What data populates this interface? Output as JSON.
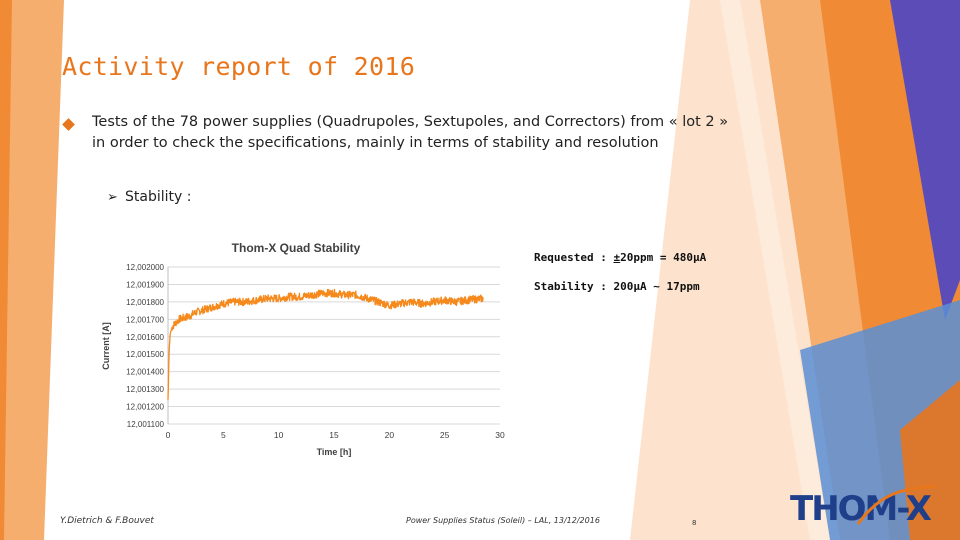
{
  "slide": {
    "title": "Activity report of 2016",
    "bullet_main": "Tests of the 78 power supplies (Quadrupoles, Sextupoles, and Correctors) from « lot 2 » in order to check the specifications, mainly in terms of stability and resolution",
    "bullet_sub": "Stability :",
    "note_requested_prefix": "Requested : ",
    "note_requested_pm": "±",
    "note_requested_rest": "20ppm = 480µA",
    "note_stability": "Stability : 200µA ~ 17ppm",
    "footer_authors": "Y.Dietrich & F.Bouvet",
    "footer_event": "Power Supplies Status (Soleil) – LAL, 13/12/2016",
    "page_number": "8",
    "logo_text": "THOM-X",
    "colors": {
      "accent": "#e8761d",
      "series": "#f5891c",
      "grid": "#d9d9d9",
      "purple": "#5b4cb8",
      "blue": "#5a8fd6"
    }
  },
  "chart_data": {
    "type": "line",
    "title": "Thom-X Quad Stability",
    "xlabel": "Time [h]",
    "ylabel": "Current [A]",
    "xlim": [
      0,
      30
    ],
    "ylim": [
      12.0011,
      12.002
    ],
    "xticks": [
      0,
      5,
      10,
      15,
      20,
      25,
      30
    ],
    "xtick_labels": [
      "0",
      "5",
      "10",
      "15",
      "20",
      "25",
      "30"
    ],
    "yticks": [
      12.0011,
      12.0012,
      12.0013,
      12.0014,
      12.0015,
      12.0016,
      12.0017,
      12.0018,
      12.0019,
      12.002
    ],
    "ytick_labels": [
      "12,001100",
      "12,001200",
      "12,001300",
      "12,001400",
      "12,001500",
      "12,001600",
      "12,001700",
      "12,001800",
      "12,001900",
      "12,002000"
    ],
    "grid": true,
    "series": [
      {
        "color": "#f5891c",
        "x": [
          0,
          0.1,
          0.2,
          0.4,
          0.7,
          1,
          1.5,
          2,
          2.5,
          3,
          4,
          5,
          6,
          7,
          8,
          9,
          10,
          11,
          12,
          13,
          14,
          15,
          16,
          17,
          18,
          19,
          20,
          21,
          22,
          23,
          24,
          25,
          26,
          27,
          28.5
        ],
        "y": [
          12.00124,
          12.00152,
          12.00162,
          12.00166,
          12.00168,
          12.0017,
          12.00171,
          12.00172,
          12.00174,
          12.00175,
          12.00177,
          12.00179,
          12.0018,
          12.0018,
          12.00181,
          12.00182,
          12.00182,
          12.00183,
          12.00183,
          12.00184,
          12.00185,
          12.00185,
          12.00184,
          12.00184,
          12.00182,
          12.0018,
          12.00178,
          12.00179,
          12.0018,
          12.00179,
          12.0018,
          12.00181,
          12.0018,
          12.00181,
          12.00182
        ],
        "noise_amplitude": 2.2e-05
      }
    ]
  }
}
